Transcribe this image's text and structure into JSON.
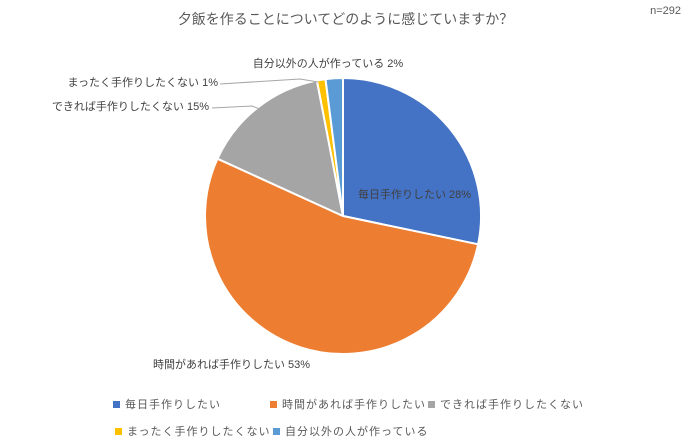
{
  "chart_data": {
    "type": "pie",
    "title": "夕飯を作ることについてどのように感じていますか？",
    "sample_note": "n=292",
    "categories": [
      "毎日手作りしたい",
      "時間があれば手作りしたい",
      "できれば手作りしたくない",
      "まったく手作りしたくない",
      "自分以外の人が作っている"
    ],
    "values": [
      28,
      53,
      15,
      1,
      2
    ],
    "unit": "%",
    "colors": [
      "#4472C4",
      "#ED7D31",
      "#A5A5A5",
      "#FFC000",
      "#5B9BD5"
    ],
    "point_labels": [
      "毎日手作りしたい 28%",
      "時間があれば手作りしたい 53%",
      "できれば手作りしたくない 15%",
      "まったく手作りしたくない 1%",
      "自分以外の人が作っている 2%"
    ],
    "start_angle_deg": 0,
    "direction": "clockwise",
    "legend_position": "bottom",
    "leader_line_color": "#A6A6A6",
    "background_color": "#FFFFFF"
  }
}
